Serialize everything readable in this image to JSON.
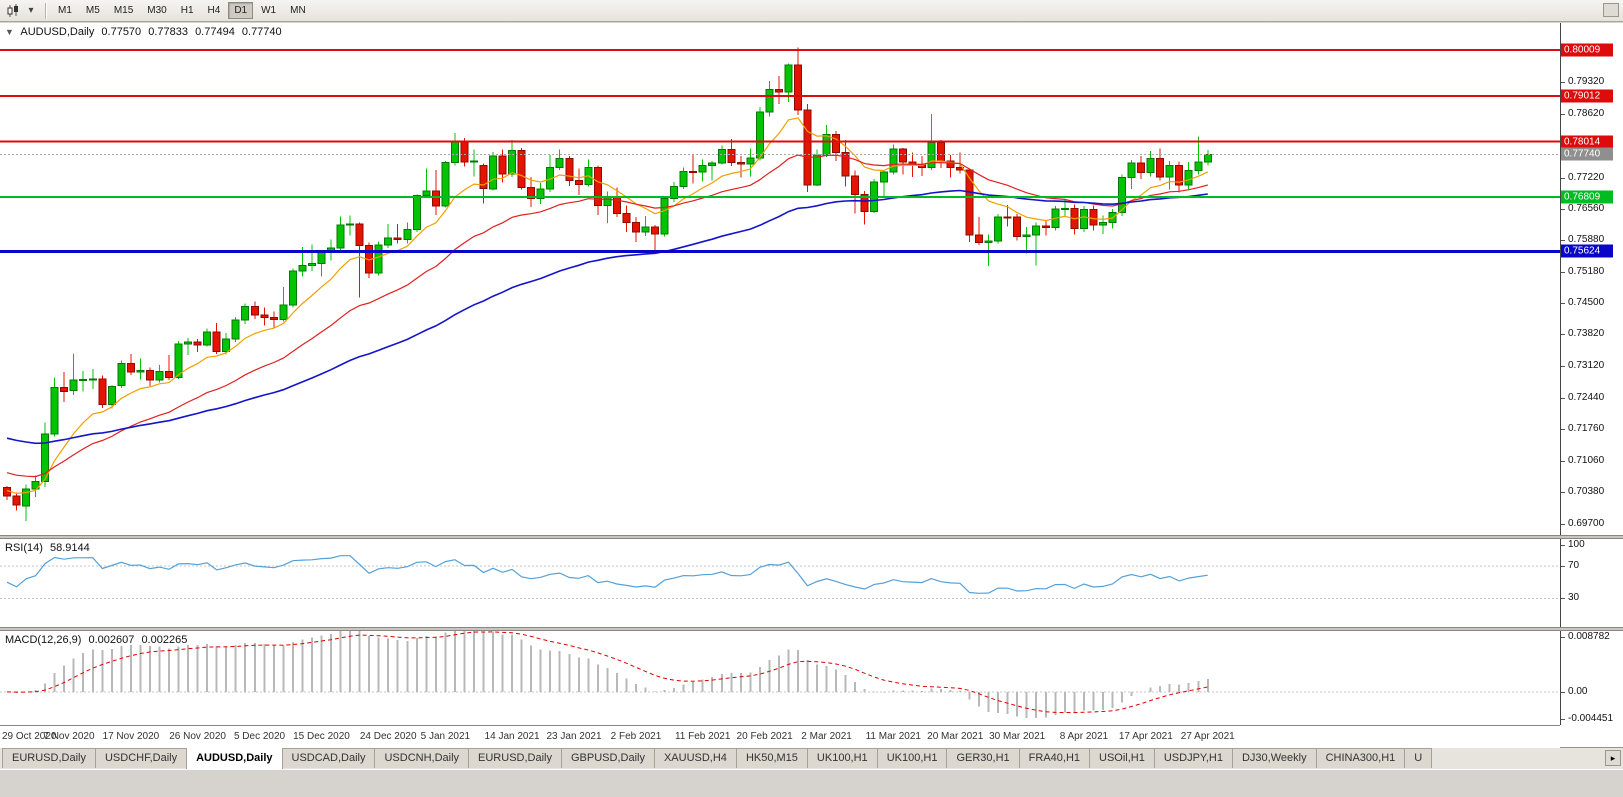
{
  "toolbar": {
    "chart_type_tooltip": "Candlesticks",
    "dropdown_arrow": "▾",
    "timeframes": [
      {
        "label": "M1",
        "active": false
      },
      {
        "label": "M5",
        "active": false
      },
      {
        "label": "M15",
        "active": false
      },
      {
        "label": "M30",
        "active": false
      },
      {
        "label": "H1",
        "active": false
      },
      {
        "label": "H4",
        "active": false
      },
      {
        "label": "D1",
        "active": true
      },
      {
        "label": "W1",
        "active": false
      },
      {
        "label": "MN",
        "active": false
      }
    ]
  },
  "chart": {
    "collapse_arrow": "▼",
    "symbol_label": "AUDUSD,Daily",
    "ohlc": {
      "open": "0.77570",
      "high": "0.77833",
      "low": "0.77494",
      "close": "0.77740"
    },
    "current_price": {
      "value": 0.7774,
      "label": "0.77740"
    },
    "levels": [
      {
        "label": "0.80009",
        "value": 0.80009,
        "color": "#dd0b0b",
        "width": 2
      },
      {
        "label": "0.79012",
        "value": 0.79012,
        "color": "#dd0b0b",
        "width": 2
      },
      {
        "label": "0.78014",
        "value": 0.78014,
        "color": "#dd0b0b",
        "width": 2
      },
      {
        "label": "0.76809",
        "value": 0.76809,
        "color": "#00bb22",
        "width": 2
      },
      {
        "label": "0.75624",
        "value": 0.75624,
        "color": "#0a06c8",
        "width": 3
      }
    ],
    "price_axis_ticks": [
      "0.79320",
      "0.78620",
      "0.77220",
      "0.76560",
      "0.75880",
      "0.75180",
      "0.74500",
      "0.73820",
      "0.73120",
      "0.72440",
      "0.71760",
      "0.71060",
      "0.70380",
      "0.69700"
    ]
  },
  "indicators": {
    "rsi": {
      "name": "RSI(14)",
      "value": "58.9144",
      "line_color": "#53a1d9",
      "grid_levels": [
        70,
        30
      ],
      "axis_labels": [
        {
          "text": "100",
          "value": 100
        },
        {
          "text": "70",
          "value": 70
        },
        {
          "text": "30",
          "value": 30
        }
      ]
    },
    "macd": {
      "name": "MACD(12,26,9)",
      "value_main": "0.002607",
      "value_signal": "0.002265",
      "histogram_color": "#b8b8b8",
      "signal_color": "#e00000",
      "axis_labels": [
        {
          "text": "0.008782",
          "value": 0.008782
        },
        {
          "text": "0.00",
          "value": 0
        },
        {
          "text": "-0.004451",
          "value": -0.004451
        }
      ]
    }
  },
  "tabs": {
    "scroll_right_icon": "▸",
    "items": [
      {
        "label": "EURUSD,Daily",
        "active": false
      },
      {
        "label": "USDCHF,Daily",
        "active": false
      },
      {
        "label": "AUDUSD,Daily",
        "active": true
      },
      {
        "label": "USDCAD,Daily",
        "active": false
      },
      {
        "label": "USDCNH,Daily",
        "active": false
      },
      {
        "label": "EURUSD,Daily",
        "active": false
      },
      {
        "label": "GBPUSD,Daily",
        "active": false
      },
      {
        "label": "XAUUSD,H4",
        "active": false
      },
      {
        "label": "HK50,M15",
        "active": false
      },
      {
        "label": "UK100,H1",
        "active": false
      },
      {
        "label": "UK100,H1",
        "active": false
      },
      {
        "label": "GER30,H1",
        "active": false
      },
      {
        "label": "FRA40,H1",
        "active": false
      },
      {
        "label": "USOil,H1",
        "active": false
      },
      {
        "label": "USDJPY,H1",
        "active": false
      },
      {
        "label": "DJ30,Weekly",
        "active": false
      },
      {
        "label": "CHINA300,H1",
        "active": false
      },
      {
        "label": "U",
        "active": false
      }
    ]
  },
  "chart_data": {
    "type": "candlestick",
    "symbol": "AUDUSD",
    "timeframe": "Daily",
    "title": "AUDUSD,Daily 0.77570 0.77833 0.77494 0.77740",
    "y_range": [
      0.6945,
      0.806
    ],
    "indicator_params": {
      "rsi_period": 14,
      "macd": [
        12,
        26,
        9
      ]
    },
    "colors": {
      "up": "#02c402",
      "up_border": "#067806",
      "down": "#e41400",
      "down_border": "#8c0c00"
    },
    "moving_averages": [
      {
        "period": 9,
        "color": "#f0a000",
        "seed": 0.7045,
        "width": 1.2
      },
      {
        "period": 25,
        "color": "#e02020",
        "seed": 0.7085,
        "width": 1.2
      },
      {
        "period": 60,
        "color": "#1414c8",
        "seed": 0.716,
        "width": 1.6
      }
    ],
    "x_labels": [
      {
        "text": "29 Oct 2020",
        "index": 0
      },
      {
        "text": "7 Nov 2020",
        "index": 6.5
      },
      {
        "text": "17 Nov 2020",
        "index": 13
      },
      {
        "text": "26 Nov 2020",
        "index": 20
      },
      {
        "text": "5 Dec 2020",
        "index": 26.5
      },
      {
        "text": "15 Dec 2020",
        "index": 33
      },
      {
        "text": "24 Dec 2020",
        "index": 40
      },
      {
        "text": "5 Jan 2021",
        "index": 46
      },
      {
        "text": "14 Jan 2021",
        "index": 53
      },
      {
        "text": "23 Jan 2021",
        "index": 59.5
      },
      {
        "text": "2 Feb 2021",
        "index": 66
      },
      {
        "text": "11 Feb 2021",
        "index": 73
      },
      {
        "text": "20 Feb 2021",
        "index": 79.5
      },
      {
        "text": "2 Mar 2021",
        "index": 86
      },
      {
        "text": "11 Mar 2021",
        "index": 93
      },
      {
        "text": "20 Mar 2021",
        "index": 99.5
      },
      {
        "text": "30 Mar 2021",
        "index": 106
      },
      {
        "text": "8 Apr 2021",
        "index": 113
      },
      {
        "text": "17 Apr 2021",
        "index": 119.5
      },
      {
        "text": "27 Apr 2021",
        "index": 126
      }
    ],
    "candles": [
      [
        0.7048,
        0.7052,
        0.7021,
        0.703
      ],
      [
        0.703,
        0.7038,
        0.6998,
        0.701
      ],
      [
        0.7008,
        0.7055,
        0.6976,
        0.7045
      ],
      [
        0.7045,
        0.7075,
        0.7028,
        0.7062
      ],
      [
        0.7062,
        0.719,
        0.7049,
        0.7165
      ],
      [
        0.7165,
        0.7288,
        0.716,
        0.7266
      ],
      [
        0.7266,
        0.73,
        0.7235,
        0.7257
      ],
      [
        0.726,
        0.734,
        0.725,
        0.7283
      ],
      [
        0.7283,
        0.7302,
        0.7257,
        0.7284
      ],
      [
        0.7284,
        0.7306,
        0.7263,
        0.7285
      ],
      [
        0.7285,
        0.7292,
        0.7222,
        0.7229
      ],
      [
        0.7229,
        0.7272,
        0.7221,
        0.7268
      ],
      [
        0.727,
        0.7325,
        0.7265,
        0.7318
      ],
      [
        0.7318,
        0.7339,
        0.7293,
        0.73
      ],
      [
        0.73,
        0.7329,
        0.7284,
        0.7303
      ],
      [
        0.7303,
        0.731,
        0.7269,
        0.7282
      ],
      [
        0.7282,
        0.7315,
        0.7277,
        0.7301
      ],
      [
        0.7301,
        0.7337,
        0.7283,
        0.7288
      ],
      [
        0.7288,
        0.7367,
        0.7285,
        0.7361
      ],
      [
        0.7361,
        0.7374,
        0.7337,
        0.7365
      ],
      [
        0.7365,
        0.7372,
        0.7343,
        0.7359
      ],
      [
        0.7359,
        0.7395,
        0.7355,
        0.7387
      ],
      [
        0.7387,
        0.7407,
        0.7339,
        0.7345
      ],
      [
        0.7345,
        0.7385,
        0.7338,
        0.7372
      ],
      [
        0.7372,
        0.742,
        0.7365,
        0.7413
      ],
      [
        0.7413,
        0.7449,
        0.7405,
        0.7443
      ],
      [
        0.7443,
        0.7453,
        0.7415,
        0.7424
      ],
      [
        0.7424,
        0.744,
        0.7401,
        0.7419
      ],
      [
        0.7419,
        0.7432,
        0.7395,
        0.7414
      ],
      [
        0.7414,
        0.7485,
        0.741,
        0.7446
      ],
      [
        0.7446,
        0.7525,
        0.744,
        0.752
      ],
      [
        0.752,
        0.7572,
        0.7508,
        0.7532
      ],
      [
        0.7532,
        0.7578,
        0.752,
        0.7536
      ],
      [
        0.7536,
        0.7565,
        0.7508,
        0.756
      ],
      [
        0.756,
        0.7588,
        0.7543,
        0.757
      ],
      [
        0.757,
        0.7639,
        0.7565,
        0.762
      ],
      [
        0.762,
        0.7641,
        0.7597,
        0.7622
      ],
      [
        0.7622,
        0.7625,
        0.7462,
        0.7575
      ],
      [
        0.7575,
        0.7582,
        0.7505,
        0.7516
      ],
      [
        0.7516,
        0.7584,
        0.751,
        0.7576
      ],
      [
        0.7576,
        0.7622,
        0.757,
        0.7592
      ],
      [
        0.7592,
        0.7622,
        0.758,
        0.7588
      ],
      [
        0.7588,
        0.7626,
        0.758,
        0.761
      ],
      [
        0.761,
        0.7686,
        0.7605,
        0.7684
      ],
      [
        0.7684,
        0.7743,
        0.768,
        0.7694
      ],
      [
        0.7694,
        0.774,
        0.7642,
        0.7662
      ],
      [
        0.7662,
        0.776,
        0.7658,
        0.7756
      ],
      [
        0.7756,
        0.782,
        0.775,
        0.7803
      ],
      [
        0.7803,
        0.781,
        0.7747,
        0.7757
      ],
      [
        0.7757,
        0.7785,
        0.7726,
        0.776
      ],
      [
        0.775,
        0.7754,
        0.7667,
        0.7699
      ],
      [
        0.7699,
        0.7779,
        0.7695,
        0.777
      ],
      [
        0.777,
        0.7785,
        0.7713,
        0.7731
      ],
      [
        0.7731,
        0.7805,
        0.7725,
        0.7782
      ],
      [
        0.7782,
        0.7788,
        0.7697,
        0.7702
      ],
      [
        0.7702,
        0.7725,
        0.7659,
        0.7678
      ],
      [
        0.7678,
        0.7712,
        0.7666,
        0.7698
      ],
      [
        0.7698,
        0.7772,
        0.7692,
        0.7745
      ],
      [
        0.7745,
        0.7784,
        0.774,
        0.7765
      ],
      [
        0.7765,
        0.777,
        0.7705,
        0.7717
      ],
      [
        0.7717,
        0.7743,
        0.7685,
        0.7708
      ],
      [
        0.7708,
        0.7763,
        0.7704,
        0.7745
      ],
      [
        0.7745,
        0.775,
        0.7642,
        0.7662
      ],
      [
        0.7662,
        0.7693,
        0.7624,
        0.7681
      ],
      [
        0.7681,
        0.7702,
        0.7637,
        0.7645
      ],
      [
        0.7645,
        0.7663,
        0.7605,
        0.7626
      ],
      [
        0.7626,
        0.7637,
        0.7583,
        0.7605
      ],
      [
        0.7605,
        0.764,
        0.7596,
        0.7616
      ],
      [
        0.7616,
        0.762,
        0.7557,
        0.76
      ],
      [
        0.76,
        0.7682,
        0.7595,
        0.7678
      ],
      [
        0.7678,
        0.7714,
        0.767,
        0.7704
      ],
      [
        0.7704,
        0.7745,
        0.7698,
        0.7737
      ],
      [
        0.7737,
        0.7772,
        0.7711,
        0.7735
      ],
      [
        0.7735,
        0.7763,
        0.7715,
        0.775
      ],
      [
        0.775,
        0.776,
        0.7717,
        0.7755
      ],
      [
        0.7755,
        0.7793,
        0.7752,
        0.7785
      ],
      [
        0.7785,
        0.7807,
        0.7749,
        0.7756
      ],
      [
        0.7756,
        0.777,
        0.7724,
        0.7753
      ],
      [
        0.7753,
        0.7787,
        0.7726,
        0.7766
      ],
      [
        0.7766,
        0.7877,
        0.7761,
        0.7866
      ],
      [
        0.7866,
        0.7934,
        0.7856,
        0.7915
      ],
      [
        0.7915,
        0.7945,
        0.7884,
        0.791
      ],
      [
        0.791,
        0.7972,
        0.7888,
        0.7968
      ],
      [
        0.7968,
        0.8007,
        0.786,
        0.787
      ],
      [
        0.787,
        0.7884,
        0.7692,
        0.7707
      ],
      [
        0.7707,
        0.7784,
        0.7705,
        0.7773
      ],
      [
        0.7773,
        0.7838,
        0.7768,
        0.7817
      ],
      [
        0.7817,
        0.7825,
        0.776,
        0.7778
      ],
      [
        0.7778,
        0.7805,
        0.7704,
        0.7727
      ],
      [
        0.7727,
        0.7739,
        0.7645,
        0.7687
      ],
      [
        0.7687,
        0.7694,
        0.7621,
        0.765
      ],
      [
        0.765,
        0.772,
        0.7646,
        0.7714
      ],
      [
        0.7714,
        0.774,
        0.7683,
        0.7735
      ],
      [
        0.7735,
        0.7795,
        0.773,
        0.7786
      ],
      [
        0.7786,
        0.7788,
        0.773,
        0.7757
      ],
      [
        0.7757,
        0.7778,
        0.7725,
        0.7752
      ],
      [
        0.7752,
        0.777,
        0.7727,
        0.7745
      ],
      [
        0.7745,
        0.7862,
        0.774,
        0.78
      ],
      [
        0.78,
        0.7805,
        0.7744,
        0.776
      ],
      [
        0.776,
        0.7772,
        0.7724,
        0.7745
      ],
      [
        0.7745,
        0.7778,
        0.7732,
        0.774
      ],
      [
        0.774,
        0.7742,
        0.7583,
        0.7598
      ],
      [
        0.7598,
        0.7637,
        0.7577,
        0.7582
      ],
      [
        0.7582,
        0.7599,
        0.7531,
        0.7585
      ],
      [
        0.7585,
        0.7644,
        0.758,
        0.7638
      ],
      [
        0.7638,
        0.7664,
        0.7617,
        0.7637
      ],
      [
        0.7637,
        0.7644,
        0.7586,
        0.7595
      ],
      [
        0.7595,
        0.7616,
        0.7558,
        0.7598
      ],
      [
        0.7598,
        0.7626,
        0.7532,
        0.7618
      ],
      [
        0.7618,
        0.7629,
        0.7597,
        0.7615
      ],
      [
        0.7615,
        0.7662,
        0.7608,
        0.7655
      ],
      [
        0.7655,
        0.7677,
        0.7637,
        0.7656
      ],
      [
        0.7656,
        0.7665,
        0.7599,
        0.7612
      ],
      [
        0.7612,
        0.7662,
        0.7605,
        0.7654
      ],
      [
        0.7654,
        0.7663,
        0.7608,
        0.762
      ],
      [
        0.762,
        0.7641,
        0.7601,
        0.7625
      ],
      [
        0.7625,
        0.7655,
        0.7612,
        0.7647
      ],
      [
        0.7647,
        0.773,
        0.764,
        0.7724
      ],
      [
        0.7724,
        0.7762,
        0.7698,
        0.7755
      ],
      [
        0.7755,
        0.777,
        0.772,
        0.7734
      ],
      [
        0.7734,
        0.7781,
        0.7726,
        0.7765
      ],
      [
        0.7765,
        0.7787,
        0.7717,
        0.7725
      ],
      [
        0.7725,
        0.776,
        0.7697,
        0.775
      ],
      [
        0.775,
        0.7758,
        0.7691,
        0.7707
      ],
      [
        0.7707,
        0.7757,
        0.7699,
        0.7739
      ],
      [
        0.7739,
        0.7813,
        0.773,
        0.7757
      ],
      [
        0.7757,
        0.77833,
        0.77494,
        0.7774
      ]
    ]
  }
}
